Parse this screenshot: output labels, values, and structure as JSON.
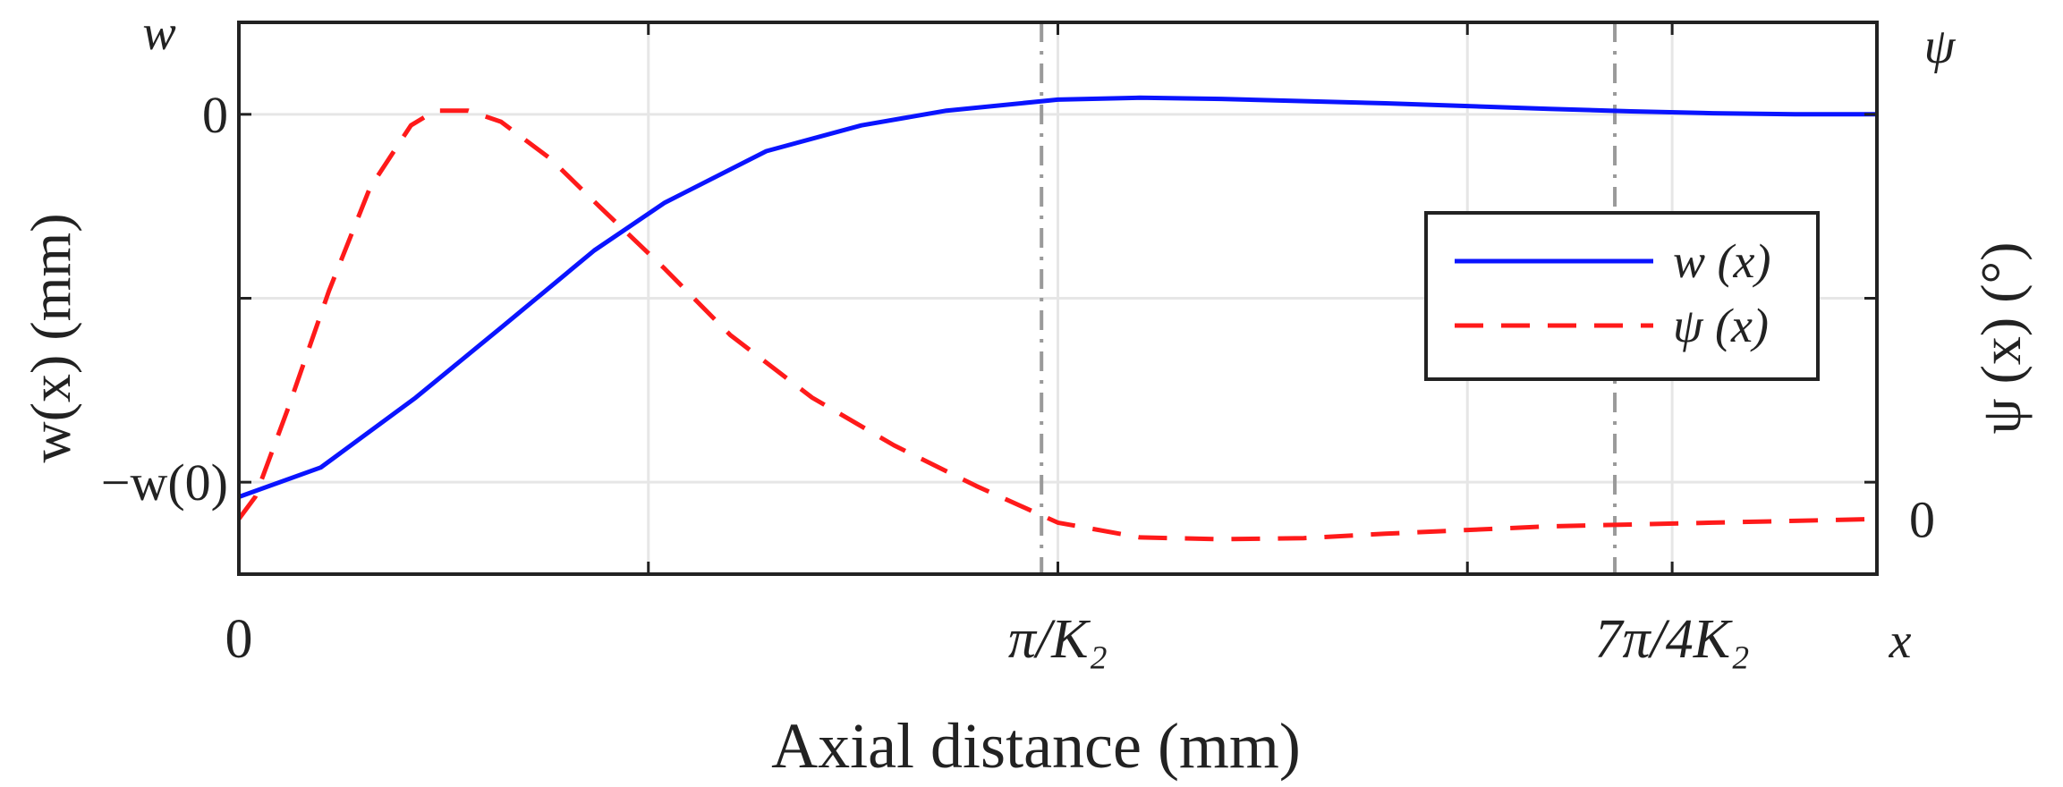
{
  "chart_data": {
    "type": "line",
    "title": "",
    "xlabel": "Axial distance (mm)",
    "ylabel_left": "w(x) (mm)",
    "ylabel_right": "ψ (x) (°)",
    "corner_left": "w",
    "corner_right": "ψ",
    "x_end_label": "x",
    "grid": true,
    "legend_position": "center-right",
    "xlim": [
      0,
      1
    ],
    "ylim_left": [
      -1.25,
      0.25
    ],
    "ylim_right": [
      -0.15,
      1.35
    ],
    "x_ticks": [
      {
        "value": 0,
        "label": "0"
      },
      {
        "value": 0.25,
        "label": ""
      },
      {
        "value": 0.5,
        "label": "π/K₂"
      },
      {
        "value": 0.75,
        "label": ""
      },
      {
        "value": 0.875,
        "label": "7π/4K₂"
      }
    ],
    "y_ticks_left": [
      {
        "value": 0,
        "label": "0"
      },
      {
        "value": -0.5,
        "label": ""
      },
      {
        "value": -1,
        "label": "−w(0)"
      }
    ],
    "y_ticks_right": [
      {
        "value": 1,
        "label": ""
      },
      {
        "value": 0.5,
        "label": ""
      },
      {
        "value": 0,
        "label": "0"
      }
    ],
    "reference_lines_x": [
      0.49,
      0.84
    ],
    "series": [
      {
        "name": "w (x)",
        "axis": "left",
        "color": "#0a14ff",
        "dash": "solid",
        "x": [
          0,
          0.05,
          0.108,
          0.16,
          0.217,
          0.26,
          0.322,
          0.38,
          0.432,
          0.5,
          0.55,
          0.6,
          0.7,
          0.8,
          0.85,
          0.9,
          0.95,
          1.0
        ],
        "y": [
          -1.04,
          -0.96,
          -0.77,
          -0.58,
          -0.37,
          -0.24,
          -0.1,
          -0.03,
          0.01,
          0.04,
          0.045,
          0.042,
          0.03,
          0.015,
          0.008,
          0.003,
          0.0,
          0.0
        ]
      },
      {
        "name": "ψ (x)",
        "axis": "right",
        "color": "#ff1a1a",
        "dash": "dashed",
        "x": [
          0,
          0.01,
          0.03,
          0.055,
          0.08,
          0.105,
          0.12,
          0.14,
          0.16,
          0.19,
          0.22,
          0.26,
          0.3,
          0.35,
          0.4,
          0.45,
          0.5,
          0.55,
          0.6,
          0.65,
          0.7,
          0.75,
          0.8,
          0.85,
          0.9,
          0.95,
          1.0
        ],
        "y": [
          0,
          0.06,
          0.3,
          0.62,
          0.9,
          1.07,
          1.11,
          1.11,
          1.08,
          0.98,
          0.85,
          0.68,
          0.5,
          0.33,
          0.2,
          0.09,
          -0.01,
          -0.05,
          -0.055,
          -0.052,
          -0.04,
          -0.03,
          -0.02,
          -0.015,
          -0.01,
          -0.005,
          0
        ]
      }
    ]
  }
}
